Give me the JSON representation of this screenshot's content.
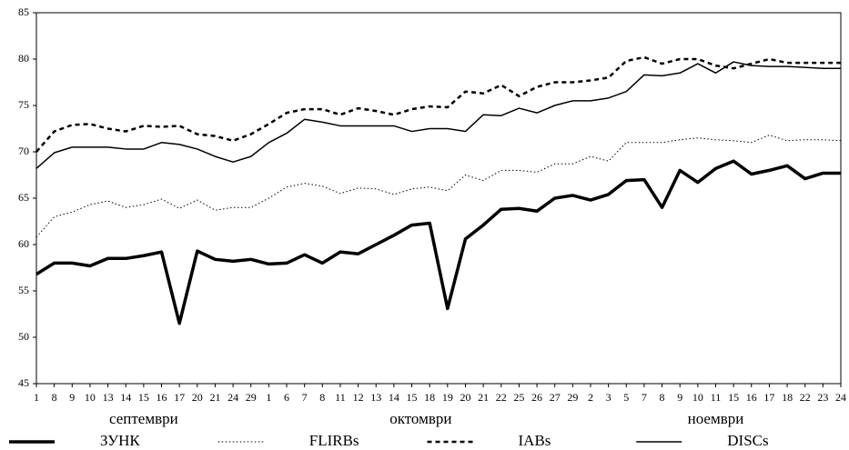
{
  "chart_data": {
    "type": "line",
    "categories": [
      "1",
      "8",
      "9",
      "10",
      "13",
      "14",
      "15",
      "16",
      "17",
      "20",
      "21",
      "24",
      "29",
      "1",
      "6",
      "7",
      "8",
      "11",
      "12",
      "13",
      "14",
      "15",
      "18",
      "19",
      "20",
      "21",
      "22",
      "25",
      "26",
      "27",
      "29",
      "2",
      "3",
      "5",
      "7",
      "8",
      "9",
      "10",
      "11",
      "15",
      "16",
      "17",
      "18",
      "22",
      "23",
      "24"
    ],
    "x_groups": [
      {
        "label": "септември",
        "count": 13
      },
      {
        "label": "октомври",
        "count": 18
      },
      {
        "label": "ноември",
        "count": 15
      }
    ],
    "ylim": [
      45,
      85
    ],
    "yticks": [
      45,
      50,
      55,
      60,
      65,
      70,
      75,
      80,
      85
    ],
    "grid": false,
    "series": [
      {
        "name": "ЗУНК",
        "color": "#000000",
        "style": "solid",
        "width": 3.5,
        "values": [
          56.8,
          58.0,
          58.0,
          57.7,
          58.5,
          58.5,
          58.8,
          59.2,
          51.5,
          59.3,
          58.4,
          58.2,
          58.4,
          57.9,
          58.0,
          58.9,
          58.0,
          59.2,
          59.0,
          60.0,
          61.0,
          62.1,
          62.3,
          53.1,
          60.6,
          62.1,
          63.8,
          63.9,
          63.6,
          65.0,
          65.3,
          64.8,
          65.4,
          66.9,
          67.0,
          64.0,
          68.0,
          66.7,
          68.2,
          69.0,
          67.6,
          68.0,
          68.5,
          67.1,
          67.7,
          67.7
        ]
      },
      {
        "name": "FLIRBs",
        "color": "#000000",
        "style": "dotted",
        "width": 1,
        "values": [
          60.8,
          63.0,
          63.5,
          64.3,
          64.7,
          64.0,
          64.3,
          64.9,
          63.9,
          64.8,
          63.7,
          64.0,
          64.0,
          65.0,
          66.2,
          66.6,
          66.3,
          65.5,
          66.1,
          66.0,
          65.4,
          66.0,
          66.2,
          65.8,
          67.5,
          66.9,
          68.0,
          68.0,
          67.8,
          68.7,
          68.7,
          69.5,
          69.0,
          71.0,
          71.0,
          71.0,
          71.3,
          71.5,
          71.3,
          71.2,
          71.0,
          71.8,
          71.2,
          71.3,
          71.3,
          71.2
        ]
      },
      {
        "name": "IABs",
        "color": "#000000",
        "style": "dashed",
        "width": 2.5,
        "values": [
          70.0,
          72.2,
          72.9,
          73.0,
          72.5,
          72.2,
          72.8,
          72.7,
          72.8,
          71.9,
          71.7,
          71.2,
          71.9,
          73.0,
          74.2,
          74.6,
          74.6,
          74.0,
          74.7,
          74.4,
          74.0,
          74.6,
          74.9,
          74.8,
          76.5,
          76.3,
          77.2,
          76.0,
          77.0,
          77.5,
          77.5,
          77.7,
          78.0,
          79.8,
          80.2,
          79.5,
          80.0,
          80.0,
          79.3,
          79.0,
          79.5,
          80.0,
          79.6,
          79.6,
          79.6,
          79.6
        ]
      },
      {
        "name": "DISCs",
        "color": "#000000",
        "style": "solid",
        "width": 1.5,
        "values": [
          68.2,
          69.9,
          70.5,
          70.5,
          70.5,
          70.3,
          70.3,
          71.0,
          70.8,
          70.3,
          69.5,
          68.9,
          69.5,
          71.0,
          72.0,
          73.5,
          73.2,
          72.8,
          72.8,
          72.8,
          72.8,
          72.2,
          72.5,
          72.5,
          72.2,
          74.0,
          73.9,
          74.7,
          74.2,
          75.0,
          75.5,
          75.5,
          75.8,
          76.5,
          78.3,
          78.2,
          78.5,
          79.5,
          78.5,
          79.7,
          79.3,
          79.2,
          79.2,
          79.1,
          79.0,
          79.0
        ]
      }
    ]
  }
}
